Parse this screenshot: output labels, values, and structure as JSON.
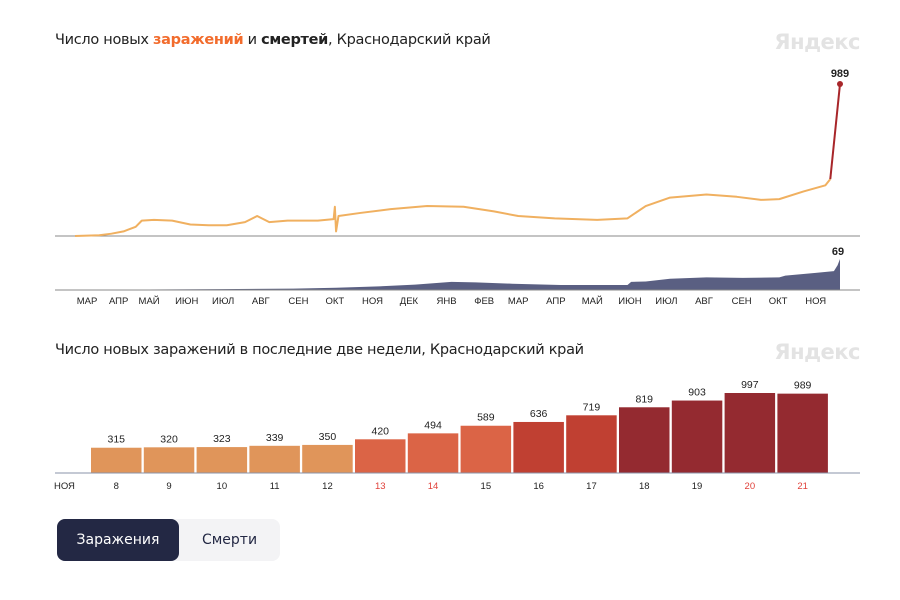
{
  "chart1": {
    "title_prefix": "Число новых ",
    "title_infections": "заражений",
    "title_and": " и ",
    "title_deaths": "смертей",
    "title_suffix": ", Краснодарский край",
    "logo": "Яндекс"
  },
  "chart2": {
    "title": "Число новых заражений в последние две недели, Краснодарский край",
    "logo": "Яндекс"
  },
  "toggle": {
    "infections": "Заражения",
    "deaths": "Смерти"
  },
  "chart_data": [
    {
      "type": "line",
      "title": "Число новых заражений и смертей, Краснодарский край",
      "x_unit": "days since 2020-03-01",
      "color": "#f0b060",
      "last_color": "#a8262a",
      "series": [
        {
          "name": "Заражения",
          "x": [
            0,
            20,
            30,
            40,
            50,
            55,
            65,
            80,
            95,
            110,
            125,
            140,
            150,
            160,
            175,
            200,
            213,
            214,
            215,
            217,
            235,
            260,
            290,
            320,
            345,
            365,
            395,
            430,
            455,
            470,
            490,
            520,
            545,
            565,
            580,
            600,
            618,
            622,
            630
          ],
          "values": [
            0,
            5,
            15,
            30,
            60,
            100,
            105,
            100,
            75,
            70,
            70,
            90,
            130,
            90,
            100,
            100,
            110,
            190,
            30,
            130,
            150,
            175,
            195,
            190,
            160,
            130,
            115,
            105,
            115,
            195,
            250,
            270,
            255,
            235,
            240,
            290,
            330,
            370,
            989
          ]
        },
        {
          "name": "Смерти",
          "x": [
            0,
            60,
            120,
            180,
            215,
            250,
            280,
            310,
            330,
            360,
            400,
            440,
            455,
            458,
            470,
            490,
            520,
            550,
            580,
            585,
            610,
            625,
            628,
            630
          ],
          "values": [
            0,
            1,
            2,
            3,
            5,
            8,
            12,
            18,
            17,
            14,
            11,
            11,
            11,
            18,
            19,
            25,
            28,
            27,
            28,
            32,
            38,
            42,
            55,
            69
          ]
        }
      ],
      "last_labels": {
        "infections": "989",
        "deaths": "69"
      },
      "ylim_infections": [
        0,
        989
      ],
      "ylim_deaths": [
        0,
        69
      ],
      "xlim": [
        0,
        630
      ],
      "month_ticks": [
        {
          "label": "МАР",
          "x": 0
        },
        {
          "label": "АПР",
          "x": 31
        },
        {
          "label": "МАЙ",
          "x": 61
        },
        {
          "label": "ИЮН",
          "x": 92
        },
        {
          "label": "ИЮЛ",
          "x": 122
        },
        {
          "label": "АВГ",
          "x": 153
        },
        {
          "label": "СЕН",
          "x": 184
        },
        {
          "label": "ОКТ",
          "x": 214
        },
        {
          "label": "НОЯ",
          "x": 245
        },
        {
          "label": "ДЕК",
          "x": 275
        },
        {
          "label": "ЯНВ",
          "x": 306
        },
        {
          "label": "ФЕВ",
          "x": 337
        },
        {
          "label": "МАР",
          "x": 365
        },
        {
          "label": "АПР",
          "x": 396
        },
        {
          "label": "МАЙ",
          "x": 426
        },
        {
          "label": "ИЮН",
          "x": 457
        },
        {
          "label": "ИЮЛ",
          "x": 487
        },
        {
          "label": "АВГ",
          "x": 518
        },
        {
          "label": "СЕН",
          "x": 549
        },
        {
          "label": "ОКТ",
          "x": 579
        },
        {
          "label": "НОЯ",
          "x": 610
        }
      ]
    },
    {
      "type": "bar",
      "title": "Число новых заражений в последние две недели, Краснодарский край",
      "month_label": "НОЯ",
      "categories": [
        "8",
        "9",
        "10",
        "11",
        "12",
        "13",
        "14",
        "15",
        "16",
        "17",
        "18",
        "19",
        "20",
        "21"
      ],
      "values": [
        315,
        320,
        323,
        339,
        350,
        420,
        494,
        589,
        636,
        719,
        819,
        903,
        997,
        989
      ],
      "weekend": [
        false,
        false,
        false,
        false,
        false,
        true,
        true,
        false,
        false,
        false,
        false,
        false,
        true,
        true
      ],
      "colors": [
        "#e0955a",
        "#e0955a",
        "#e0955a",
        "#e0955a",
        "#e0955a",
        "#db6446",
        "#db6446",
        "#db6446",
        "#c04032",
        "#c04032",
        "#942a30",
        "#942a30",
        "#942a30",
        "#942a30"
      ],
      "weekend_color": "#e0413a",
      "ylim": [
        0,
        1000
      ]
    }
  ]
}
